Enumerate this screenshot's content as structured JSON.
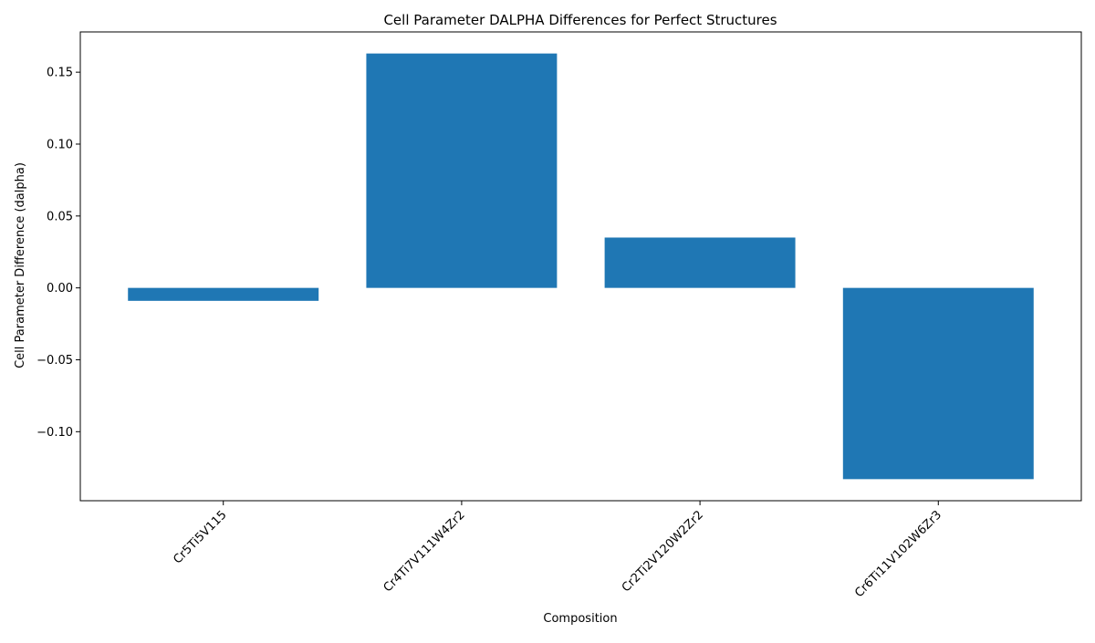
{
  "chart_data": {
    "type": "bar",
    "title": "Cell Parameter DALPHA Differences for Perfect Structures",
    "xlabel": "Composition",
    "ylabel": "Cell Parameter Difference (dalpha)",
    "categories": [
      "Cr5Ti5V115",
      "Cr4Ti7V111W4Zr2",
      "Cr2Ti2V120W2Zr2",
      "Cr6Ti11V102W6Zr3"
    ],
    "values": [
      -0.009,
      0.163,
      0.035,
      -0.133
    ],
    "ylim": [
      -0.148,
      0.178
    ],
    "yticks": [
      -0.1,
      -0.05,
      0.0,
      0.05,
      0.1,
      0.15
    ],
    "ytick_labels": [
      "−0.10",
      "−0.05",
      "0.00",
      "0.05",
      "0.10",
      "0.15"
    ],
    "bar_color": "#1f77b4",
    "grid": false,
    "legend": "none"
  }
}
